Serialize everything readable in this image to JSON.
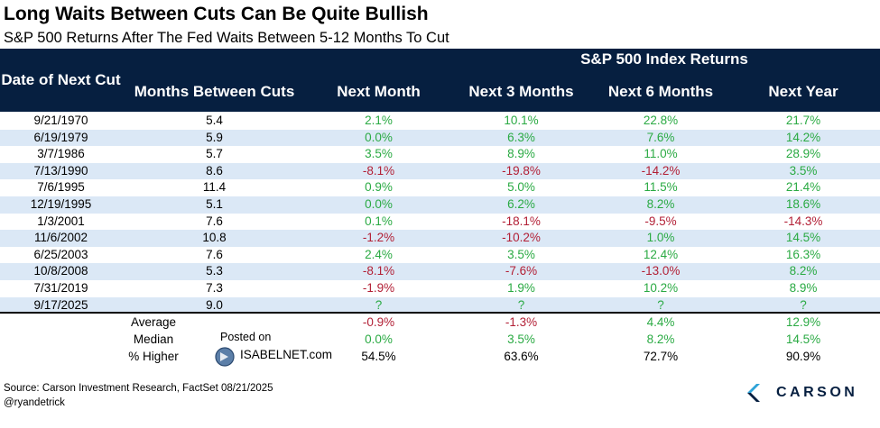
{
  "title": "Long Waits Between Cuts Can Be Quite Bullish",
  "subtitle": "S&P 500 Returns After The Fed Waits Between 5-12 Months To Cut",
  "chart_data": {
    "type": "table",
    "group_header": "S&P 500 Index Returns",
    "columns": [
      "Date of Next Cut",
      "Months Between Cuts",
      "Next Month",
      "Next 3 Months",
      "Next 6 Months",
      "Next Year"
    ],
    "rows": [
      [
        "9/21/1970",
        "5.4",
        "2.1%",
        "10.1%",
        "22.8%",
        "21.7%"
      ],
      [
        "6/19/1979",
        "5.9",
        "0.0%",
        "6.3%",
        "7.6%",
        "14.2%"
      ],
      [
        "3/7/1986",
        "5.7",
        "3.5%",
        "8.9%",
        "11.0%",
        "28.9%"
      ],
      [
        "7/13/1990",
        "8.6",
        "-8.1%",
        "-19.8%",
        "-14.2%",
        "3.5%"
      ],
      [
        "7/6/1995",
        "11.4",
        "0.9%",
        "5.0%",
        "11.5%",
        "21.4%"
      ],
      [
        "12/19/1995",
        "5.1",
        "0.0%",
        "6.2%",
        "8.2%",
        "18.6%"
      ],
      [
        "1/3/2001",
        "7.6",
        "0.1%",
        "-18.1%",
        "-9.5%",
        "-14.3%"
      ],
      [
        "11/6/2002",
        "10.8",
        "-1.2%",
        "-10.2%",
        "1.0%",
        "14.5%"
      ],
      [
        "6/25/2003",
        "7.6",
        "2.4%",
        "3.5%",
        "12.4%",
        "16.3%"
      ],
      [
        "10/8/2008",
        "5.3",
        "-8.1%",
        "-7.6%",
        "-13.0%",
        "8.2%"
      ],
      [
        "7/31/2019",
        "7.3",
        "-1.9%",
        "1.9%",
        "10.2%",
        "8.9%"
      ],
      [
        "9/17/2025",
        "9.0",
        "?",
        "?",
        "?",
        "?"
      ]
    ],
    "summary": [
      [
        "Average",
        "-0.9%",
        "-1.3%",
        "4.4%",
        "12.9%"
      ],
      [
        "Median",
        "0.0%",
        "3.5%",
        "8.2%",
        "14.5%"
      ],
      [
        "% Higher",
        "54.5%",
        "63.6%",
        "72.7%",
        "90.9%"
      ]
    ],
    "colors": {
      "header_bg": "#061f40",
      "alt_row": "#dbe8f6",
      "positive": "#2aaa43",
      "negative": "#b21f35"
    }
  },
  "watermark": {
    "label": "Posted on",
    "site": "ISABELNET.com"
  },
  "footer": {
    "source": "Source: Carson Investment Research, FactSet 08/21/2025",
    "handle": "@ryandetrick"
  },
  "brand": {
    "name": "CARSON"
  }
}
